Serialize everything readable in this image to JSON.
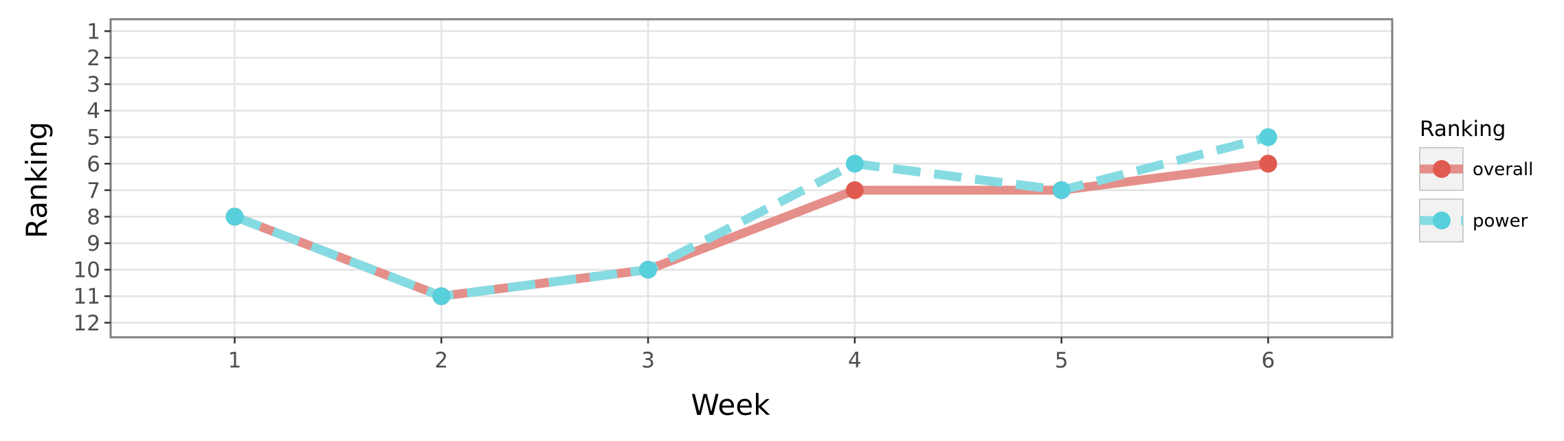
{
  "chart_data": {
    "type": "line",
    "title": "",
    "xlabel": "Week",
    "ylabel": "Ranking",
    "x": [
      1,
      2,
      3,
      4,
      5,
      6
    ],
    "x_ticks": [
      "1",
      "2",
      "3",
      "4",
      "5",
      "6"
    ],
    "xlim": [
      0.4,
      6.6
    ],
    "y_ticks": [
      "1",
      "2",
      "3",
      "4",
      "5",
      "6",
      "7",
      "8",
      "9",
      "10",
      "11",
      "12"
    ],
    "ylim": [
      0.55,
      12.55
    ],
    "y_reversed": true,
    "grid": true,
    "legend": {
      "title": "Ranking",
      "placement": "right"
    },
    "series": [
      {
        "name": "overall",
        "values": [
          8,
          11,
          10,
          7,
          7,
          6
        ],
        "line_color": "#e58f8a",
        "point_color": "#e05a50",
        "line_style": "solid"
      },
      {
        "name": "power",
        "values": [
          8,
          11,
          10,
          6,
          7,
          5
        ],
        "line_color": "#86dbe2",
        "point_color": "#57d0dc",
        "line_style": "dashed"
      }
    ]
  }
}
